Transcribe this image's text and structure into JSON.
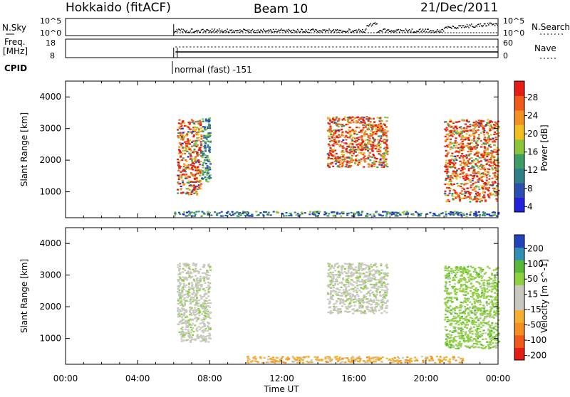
{
  "header": {
    "station": "Hokkaido (fitACF)",
    "beam": "Beam 10",
    "date": "21/Dec/2011"
  },
  "noise_panel": {
    "left_label": "N.Sky",
    "right_label": "N.Search",
    "left_ticks": [
      "10^5",
      "10^0"
    ],
    "right_ticks": [
      "10^5",
      "10^0"
    ]
  },
  "freq_panel": {
    "left_label_line1": "Freq.",
    "left_label_line2": "[MHz]",
    "left_ticks": [
      "18",
      "8"
    ],
    "right_label": "Nave",
    "right_ticks": [
      "60",
      "0"
    ]
  },
  "cpid": {
    "label": "CPID",
    "mode_text": "normal (fast) -151"
  },
  "chart_data": [
    {
      "type": "heatmap",
      "title": "",
      "quantity": "Power",
      "ylabel": "Slant Range [km]",
      "ylim": [
        180,
        4500
      ],
      "yticks": [
        "1000",
        "2000",
        "3000",
        "4000"
      ],
      "xlim": [
        "00:00",
        "24:00"
      ],
      "colorbar": {
        "label": "Power [dB]",
        "ticks": [
          "28",
          "24",
          "20",
          "16",
          "12",
          "8",
          "4"
        ],
        "range": [
          0,
          30
        ],
        "colors": [
          "#2222dd",
          "#2a4fb0",
          "#2f7f8a",
          "#3c9e66",
          "#8cc43a",
          "#f0c020",
          "#f39020",
          "#f05a18",
          "#e61d14"
        ]
      },
      "echo_regions": [
        {
          "start": "06:10",
          "end": "07:30",
          "range_km": [
            900,
            3300
          ],
          "level": "high"
        },
        {
          "start": "07:30",
          "end": "08:00",
          "range_km": [
            1300,
            3400
          ],
          "level": "medium"
        },
        {
          "start": "14:30",
          "end": "17:50",
          "range_km": [
            1800,
            3400
          ],
          "level": "high"
        },
        {
          "start": "21:00",
          "end": "24:00",
          "range_km": [
            700,
            3300
          ],
          "level": "high"
        },
        {
          "start": "06:00",
          "end": "24:00",
          "range_km": [
            250,
            400
          ],
          "level": "low"
        }
      ]
    },
    {
      "type": "heatmap",
      "title": "",
      "quantity": "Velocity",
      "ylabel": "Slant Range [km]",
      "ylim": [
        180,
        4500
      ],
      "yticks": [
        "1000",
        "2000",
        "3000",
        "4000"
      ],
      "xlabel": "Time UT",
      "xticks": [
        "00:00",
        "04:00",
        "08:00",
        "12:00",
        "16:00",
        "20:00",
        "00:00"
      ],
      "xlim": [
        "00:00",
        "24:00"
      ],
      "colorbar": {
        "label": "Velocity [m s^-1]",
        "ticks": [
          "200",
          "100",
          "50",
          "15",
          "-15",
          "-50",
          "-100",
          "-200"
        ],
        "range": [
          -250,
          250
        ],
        "colors": [
          "#e61d14",
          "#f05a18",
          "#f39020",
          "#f5b030",
          "#c8c8c0",
          "#c8c8c0",
          "#8fd040",
          "#58b83a",
          "#2f8fb5",
          "#2244bb"
        ]
      },
      "echo_regions": [
        {
          "start": "06:10",
          "end": "08:00",
          "range_km": [
            900,
            3400
          ],
          "level": "low-velocity"
        },
        {
          "start": "14:30",
          "end": "17:50",
          "range_km": [
            1800,
            3400
          ],
          "level": "low-velocity"
        },
        {
          "start": "21:00",
          "end": "24:00",
          "range_km": [
            700,
            3300
          ],
          "level": "positive"
        },
        {
          "start": "10:00",
          "end": "22:00",
          "range_km": [
            250,
            450
          ],
          "level": "negative"
        }
      ]
    }
  ]
}
